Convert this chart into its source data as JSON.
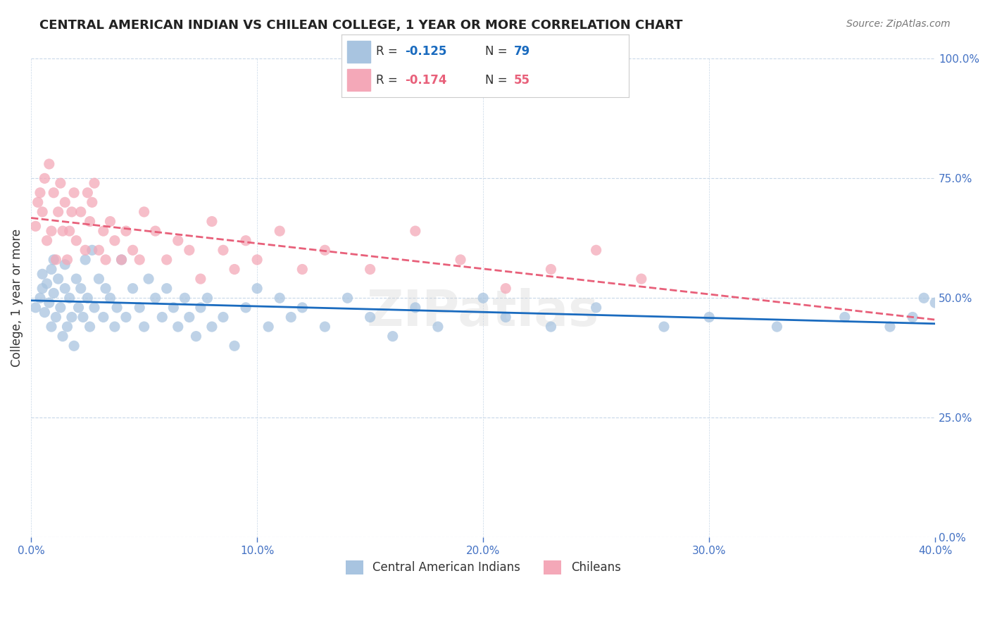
{
  "title": "CENTRAL AMERICAN INDIAN VS CHILEAN COLLEGE, 1 YEAR OR MORE CORRELATION CHART",
  "source_text": "Source: ZipAtlas.com",
  "xlabel": "",
  "ylabel": "College, 1 year or more",
  "xlim": [
    0.0,
    0.4
  ],
  "ylim": [
    0.0,
    1.0
  ],
  "xticks": [
    0.0,
    0.1,
    0.2,
    0.3,
    0.4
  ],
  "xtick_labels": [
    "0.0%",
    "10.0%",
    "20.0%",
    "30.0%",
    "40.0%"
  ],
  "ytick_labels": [
    "0.0%",
    "25.0%",
    "50.0%",
    "75.0%",
    "100.0%"
  ],
  "yticks": [
    0.0,
    0.25,
    0.5,
    0.75,
    1.0
  ],
  "blue_R": -0.125,
  "blue_N": 79,
  "pink_R": -0.174,
  "pink_N": 55,
  "blue_color": "#a8c4e0",
  "pink_color": "#f4a8b8",
  "blue_line_color": "#1a6bbf",
  "pink_line_color": "#e8607a",
  "axis_color": "#4472c4",
  "watermark": "ZIPatlas",
  "blue_scatter_x": [
    0.002,
    0.004,
    0.005,
    0.005,
    0.006,
    0.007,
    0.008,
    0.009,
    0.009,
    0.01,
    0.01,
    0.011,
    0.012,
    0.013,
    0.014,
    0.015,
    0.015,
    0.016,
    0.017,
    0.018,
    0.019,
    0.02,
    0.021,
    0.022,
    0.023,
    0.024,
    0.025,
    0.026,
    0.027,
    0.028,
    0.03,
    0.032,
    0.033,
    0.035,
    0.037,
    0.038,
    0.04,
    0.042,
    0.045,
    0.048,
    0.05,
    0.052,
    0.055,
    0.058,
    0.06,
    0.063,
    0.065,
    0.068,
    0.07,
    0.073,
    0.075,
    0.078,
    0.08,
    0.085,
    0.09,
    0.095,
    0.1,
    0.105,
    0.11,
    0.115,
    0.12,
    0.13,
    0.14,
    0.15,
    0.16,
    0.17,
    0.18,
    0.2,
    0.21,
    0.23,
    0.25,
    0.28,
    0.3,
    0.33,
    0.36,
    0.38,
    0.39,
    0.395,
    0.4
  ],
  "blue_scatter_y": [
    0.48,
    0.5,
    0.52,
    0.55,
    0.47,
    0.53,
    0.49,
    0.56,
    0.44,
    0.51,
    0.58,
    0.46,
    0.54,
    0.48,
    0.42,
    0.57,
    0.52,
    0.44,
    0.5,
    0.46,
    0.4,
    0.54,
    0.48,
    0.52,
    0.46,
    0.58,
    0.5,
    0.44,
    0.6,
    0.48,
    0.54,
    0.46,
    0.52,
    0.5,
    0.44,
    0.48,
    0.58,
    0.46,
    0.52,
    0.48,
    0.44,
    0.54,
    0.5,
    0.46,
    0.52,
    0.48,
    0.44,
    0.5,
    0.46,
    0.42,
    0.48,
    0.5,
    0.44,
    0.46,
    0.4,
    0.48,
    0.52,
    0.44,
    0.5,
    0.46,
    0.48,
    0.44,
    0.5,
    0.46,
    0.42,
    0.48,
    0.44,
    0.5,
    0.46,
    0.44,
    0.48,
    0.44,
    0.46,
    0.44,
    0.46,
    0.44,
    0.46,
    0.5,
    0.49
  ],
  "pink_scatter_x": [
    0.002,
    0.003,
    0.004,
    0.005,
    0.006,
    0.007,
    0.008,
    0.009,
    0.01,
    0.011,
    0.012,
    0.013,
    0.014,
    0.015,
    0.016,
    0.017,
    0.018,
    0.019,
    0.02,
    0.022,
    0.024,
    0.025,
    0.026,
    0.027,
    0.028,
    0.03,
    0.032,
    0.033,
    0.035,
    0.037,
    0.04,
    0.042,
    0.045,
    0.048,
    0.05,
    0.055,
    0.06,
    0.065,
    0.07,
    0.075,
    0.08,
    0.085,
    0.09,
    0.095,
    0.1,
    0.11,
    0.12,
    0.13,
    0.15,
    0.17,
    0.19,
    0.21,
    0.23,
    0.25,
    0.27
  ],
  "pink_scatter_y": [
    0.65,
    0.7,
    0.72,
    0.68,
    0.75,
    0.62,
    0.78,
    0.64,
    0.72,
    0.58,
    0.68,
    0.74,
    0.64,
    0.7,
    0.58,
    0.64,
    0.68,
    0.72,
    0.62,
    0.68,
    0.6,
    0.72,
    0.66,
    0.7,
    0.74,
    0.6,
    0.64,
    0.58,
    0.66,
    0.62,
    0.58,
    0.64,
    0.6,
    0.58,
    0.68,
    0.64,
    0.58,
    0.62,
    0.6,
    0.54,
    0.66,
    0.6,
    0.56,
    0.62,
    0.58,
    0.64,
    0.56,
    0.6,
    0.56,
    0.64,
    0.58,
    0.52,
    0.56,
    0.6,
    0.54
  ]
}
